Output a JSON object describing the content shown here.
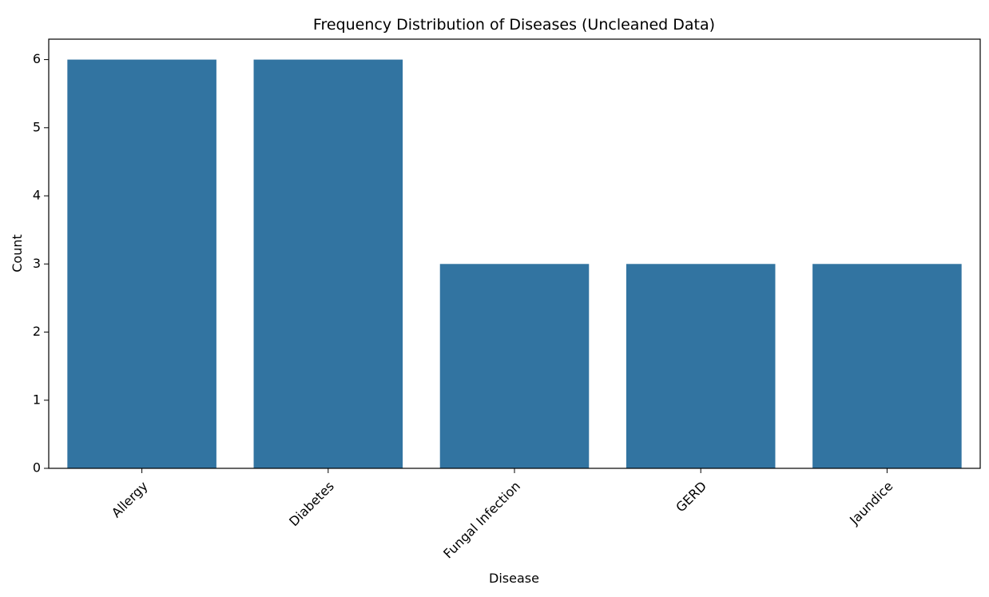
{
  "chart_data": {
    "type": "bar",
    "title": "Frequency Distribution of Diseases (Uncleaned Data)",
    "xlabel": "Disease",
    "ylabel": "Count",
    "categories": [
      "Allergy",
      "Diabetes",
      "Fungal Infection",
      "GERD",
      "Jaundice"
    ],
    "values": [
      6,
      6,
      3,
      3,
      3
    ],
    "ylim": [
      0,
      6.3
    ],
    "yticks": [
      0,
      1,
      2,
      3,
      4,
      5,
      6
    ],
    "bar_color": "#3274a1",
    "grid": false,
    "x_tick_rotation_deg": 45
  }
}
